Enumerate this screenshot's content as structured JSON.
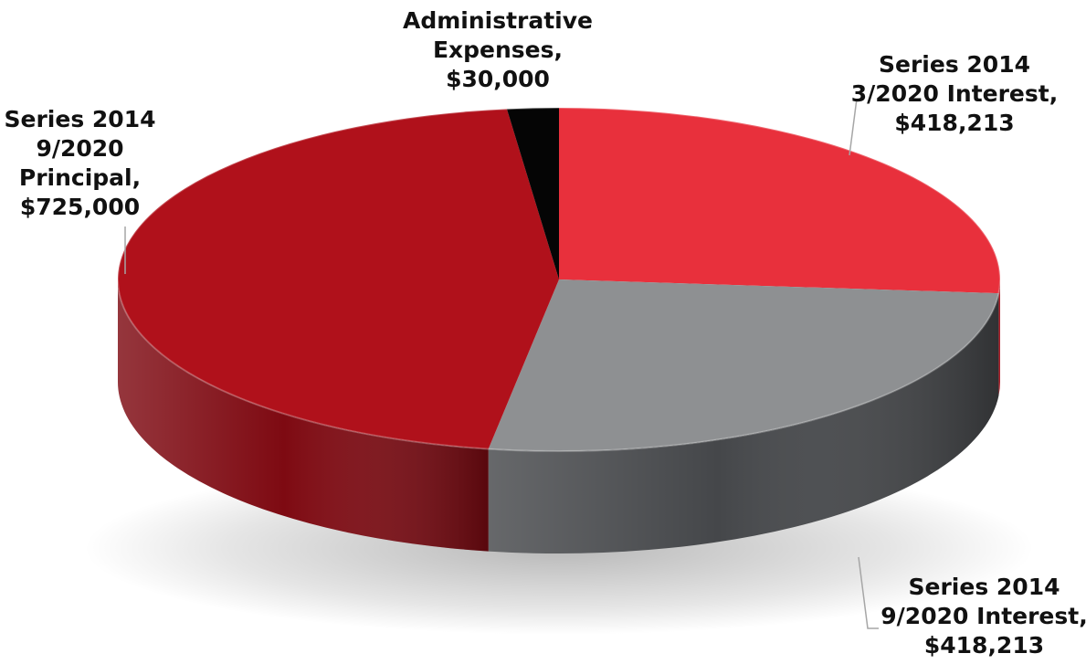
{
  "chart_data": {
    "type": "pie",
    "style": "3d",
    "legend": "none",
    "slices": [
      {
        "label_lines": [
          "Series 2014",
          "3/2020 Interest,",
          "$418,213"
        ],
        "category": "Series 2014 3/2020 Interest",
        "value": 418213,
        "value_label": "$418,213",
        "color": "#e8303c",
        "side_color": "#b3121e"
      },
      {
        "label_lines": [
          "Series 2014",
          "9/2020 Interest,",
          "$418,213"
        ],
        "category": "Series 2014 9/2020 Interest",
        "value": 418213,
        "value_label": "$418,213",
        "color": "#8e9092",
        "side_color": "#45474a"
      },
      {
        "label_lines": [
          "Series 2014",
          "9/2020",
          "Principal,",
          "$725,000"
        ],
        "category": "Series 2014 9/2020 Principal",
        "value": 725000,
        "value_label": "$725,000",
        "color": "#b0111b",
        "side_color": "#7e0a12"
      },
      {
        "label_lines": [
          "Administrative",
          "Expenses,",
          "$30,000"
        ],
        "category": "Administrative Expenses",
        "value": 30000,
        "value_label": "$30,000",
        "color": "#050505",
        "side_color": "#000000"
      }
    ]
  }
}
